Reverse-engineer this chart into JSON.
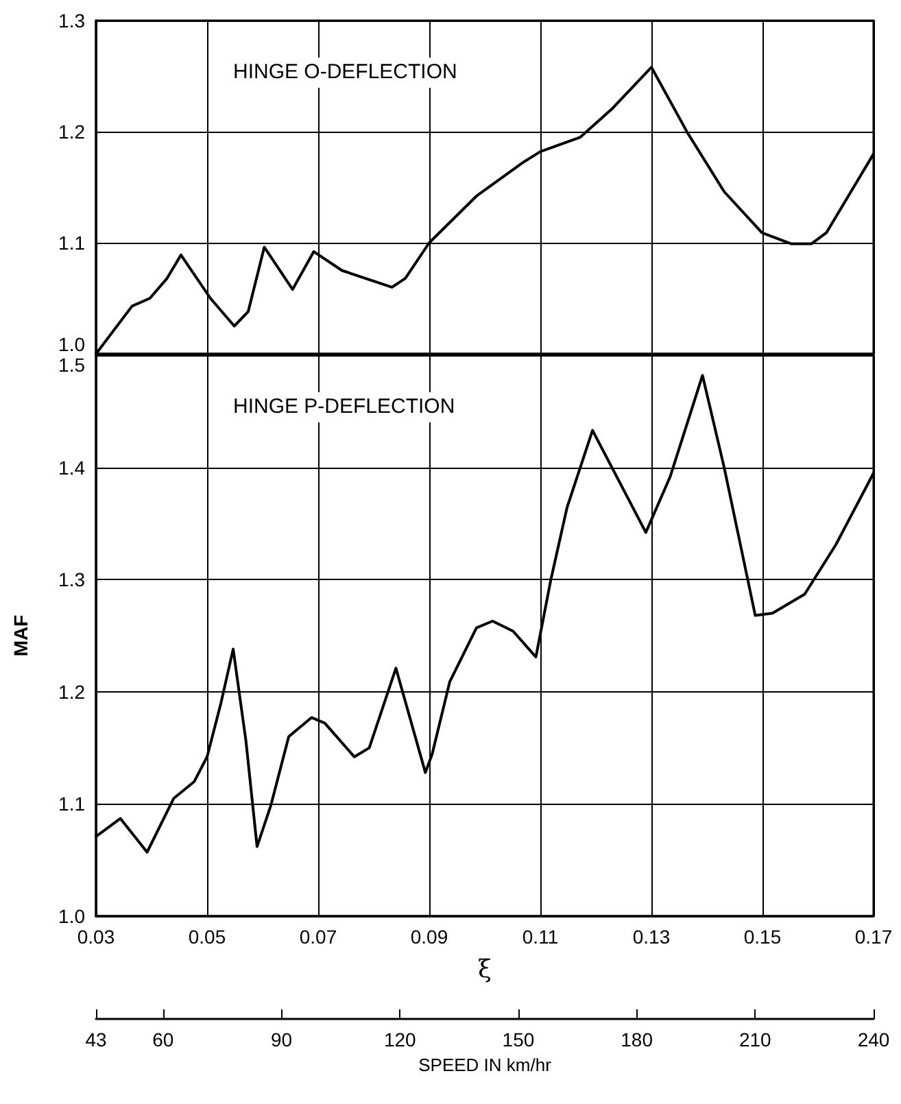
{
  "chart_data": [
    {
      "type": "line",
      "annotations": [
        "HINGE O-DEFLECTION"
      ],
      "grid": true,
      "marker": "none",
      "line_style": "solid",
      "tick_labels": "y",
      "xlim": [
        0.03,
        0.17
      ],
      "xticks": [
        0.03,
        0.05,
        0.07,
        0.09,
        0.11,
        0.13,
        0.15,
        0.17
      ],
      "ylim": [
        1.0,
        1.3
      ],
      "yticks": [
        {
          "value": 1.0,
          "label": "1.0"
        },
        1.1,
        1.2,
        1.3
      ],
      "series": [
        {
          "color": "#000000",
          "x": [
            0.03,
            0.0365,
            0.0397,
            0.0428,
            0.0453,
            0.0506,
            0.0549,
            0.0574,
            0.0603,
            0.0654,
            0.0692,
            0.0743,
            0.0833,
            0.0857,
            0.09,
            0.0985,
            0.1068,
            0.11,
            0.1172,
            0.1228,
            0.13,
            0.1365,
            0.1431,
            0.1499,
            0.1552,
            0.1588,
            0.1615,
            0.17
          ],
          "values": [
            1.0,
            1.043,
            1.05,
            1.068,
            1.089,
            1.05,
            1.025,
            1.038,
            1.096,
            1.058,
            1.092,
            1.075,
            1.06,
            1.068,
            1.1,
            1.142,
            1.172,
            1.182,
            1.195,
            1.22,
            1.258,
            1.199,
            1.146,
            1.109,
            1.099,
            1.099,
            1.109,
            1.18
          ]
        }
      ]
    },
    {
      "type": "line",
      "annotations": [
        "HINGE P-DEFLECTION"
      ],
      "grid": true,
      "marker": "none",
      "line_style": "solid",
      "xlabel": "ξ",
      "ylabel": "MAF",
      "xlim": [
        0.03,
        0.17
      ],
      "xticks": [
        0.03,
        0.05,
        0.07,
        0.09,
        0.11,
        0.13,
        0.15,
        0.17
      ],
      "ylim": [
        1.0,
        1.5
      ],
      "yticks": [
        {
          "value": 1.0,
          "label": "1.0"
        },
        1.1,
        1.2,
        1.3,
        1.4,
        1.5
      ],
      "x2lim": [
        43,
        240
      ],
      "x2ticks": [
        43,
        60,
        90,
        120,
        150,
        180,
        210,
        240
      ],
      "x2label": "SPEED IN km/hr",
      "series": [
        {
          "color": "#000000",
          "x": [
            0.03,
            0.0344,
            0.0392,
            0.044,
            0.0477,
            0.05,
            0.0525,
            0.0547,
            0.057,
            0.059,
            0.0615,
            0.0647,
            0.0688,
            0.0712,
            0.0765,
            0.0792,
            0.084,
            0.0893,
            0.0905,
            0.0937,
            0.0985,
            0.1014,
            0.1051,
            0.1092,
            0.1119,
            0.1148,
            0.1194,
            0.129,
            0.1334,
            0.1392,
            0.1431,
            0.1487,
            0.1518,
            0.1576,
            0.1632,
            0.17
          ],
          "values": [
            1.071,
            1.087,
            1.057,
            1.105,
            1.12,
            1.142,
            1.19,
            1.238,
            1.156,
            1.062,
            1.099,
            1.16,
            1.177,
            1.172,
            1.142,
            1.15,
            1.221,
            1.128,
            1.144,
            1.209,
            1.257,
            1.263,
            1.254,
            1.231,
            1.3,
            1.364,
            1.433,
            1.342,
            1.392,
            1.482,
            1.4,
            1.268,
            1.27,
            1.287,
            1.331,
            1.395
          ]
        }
      ]
    }
  ]
}
